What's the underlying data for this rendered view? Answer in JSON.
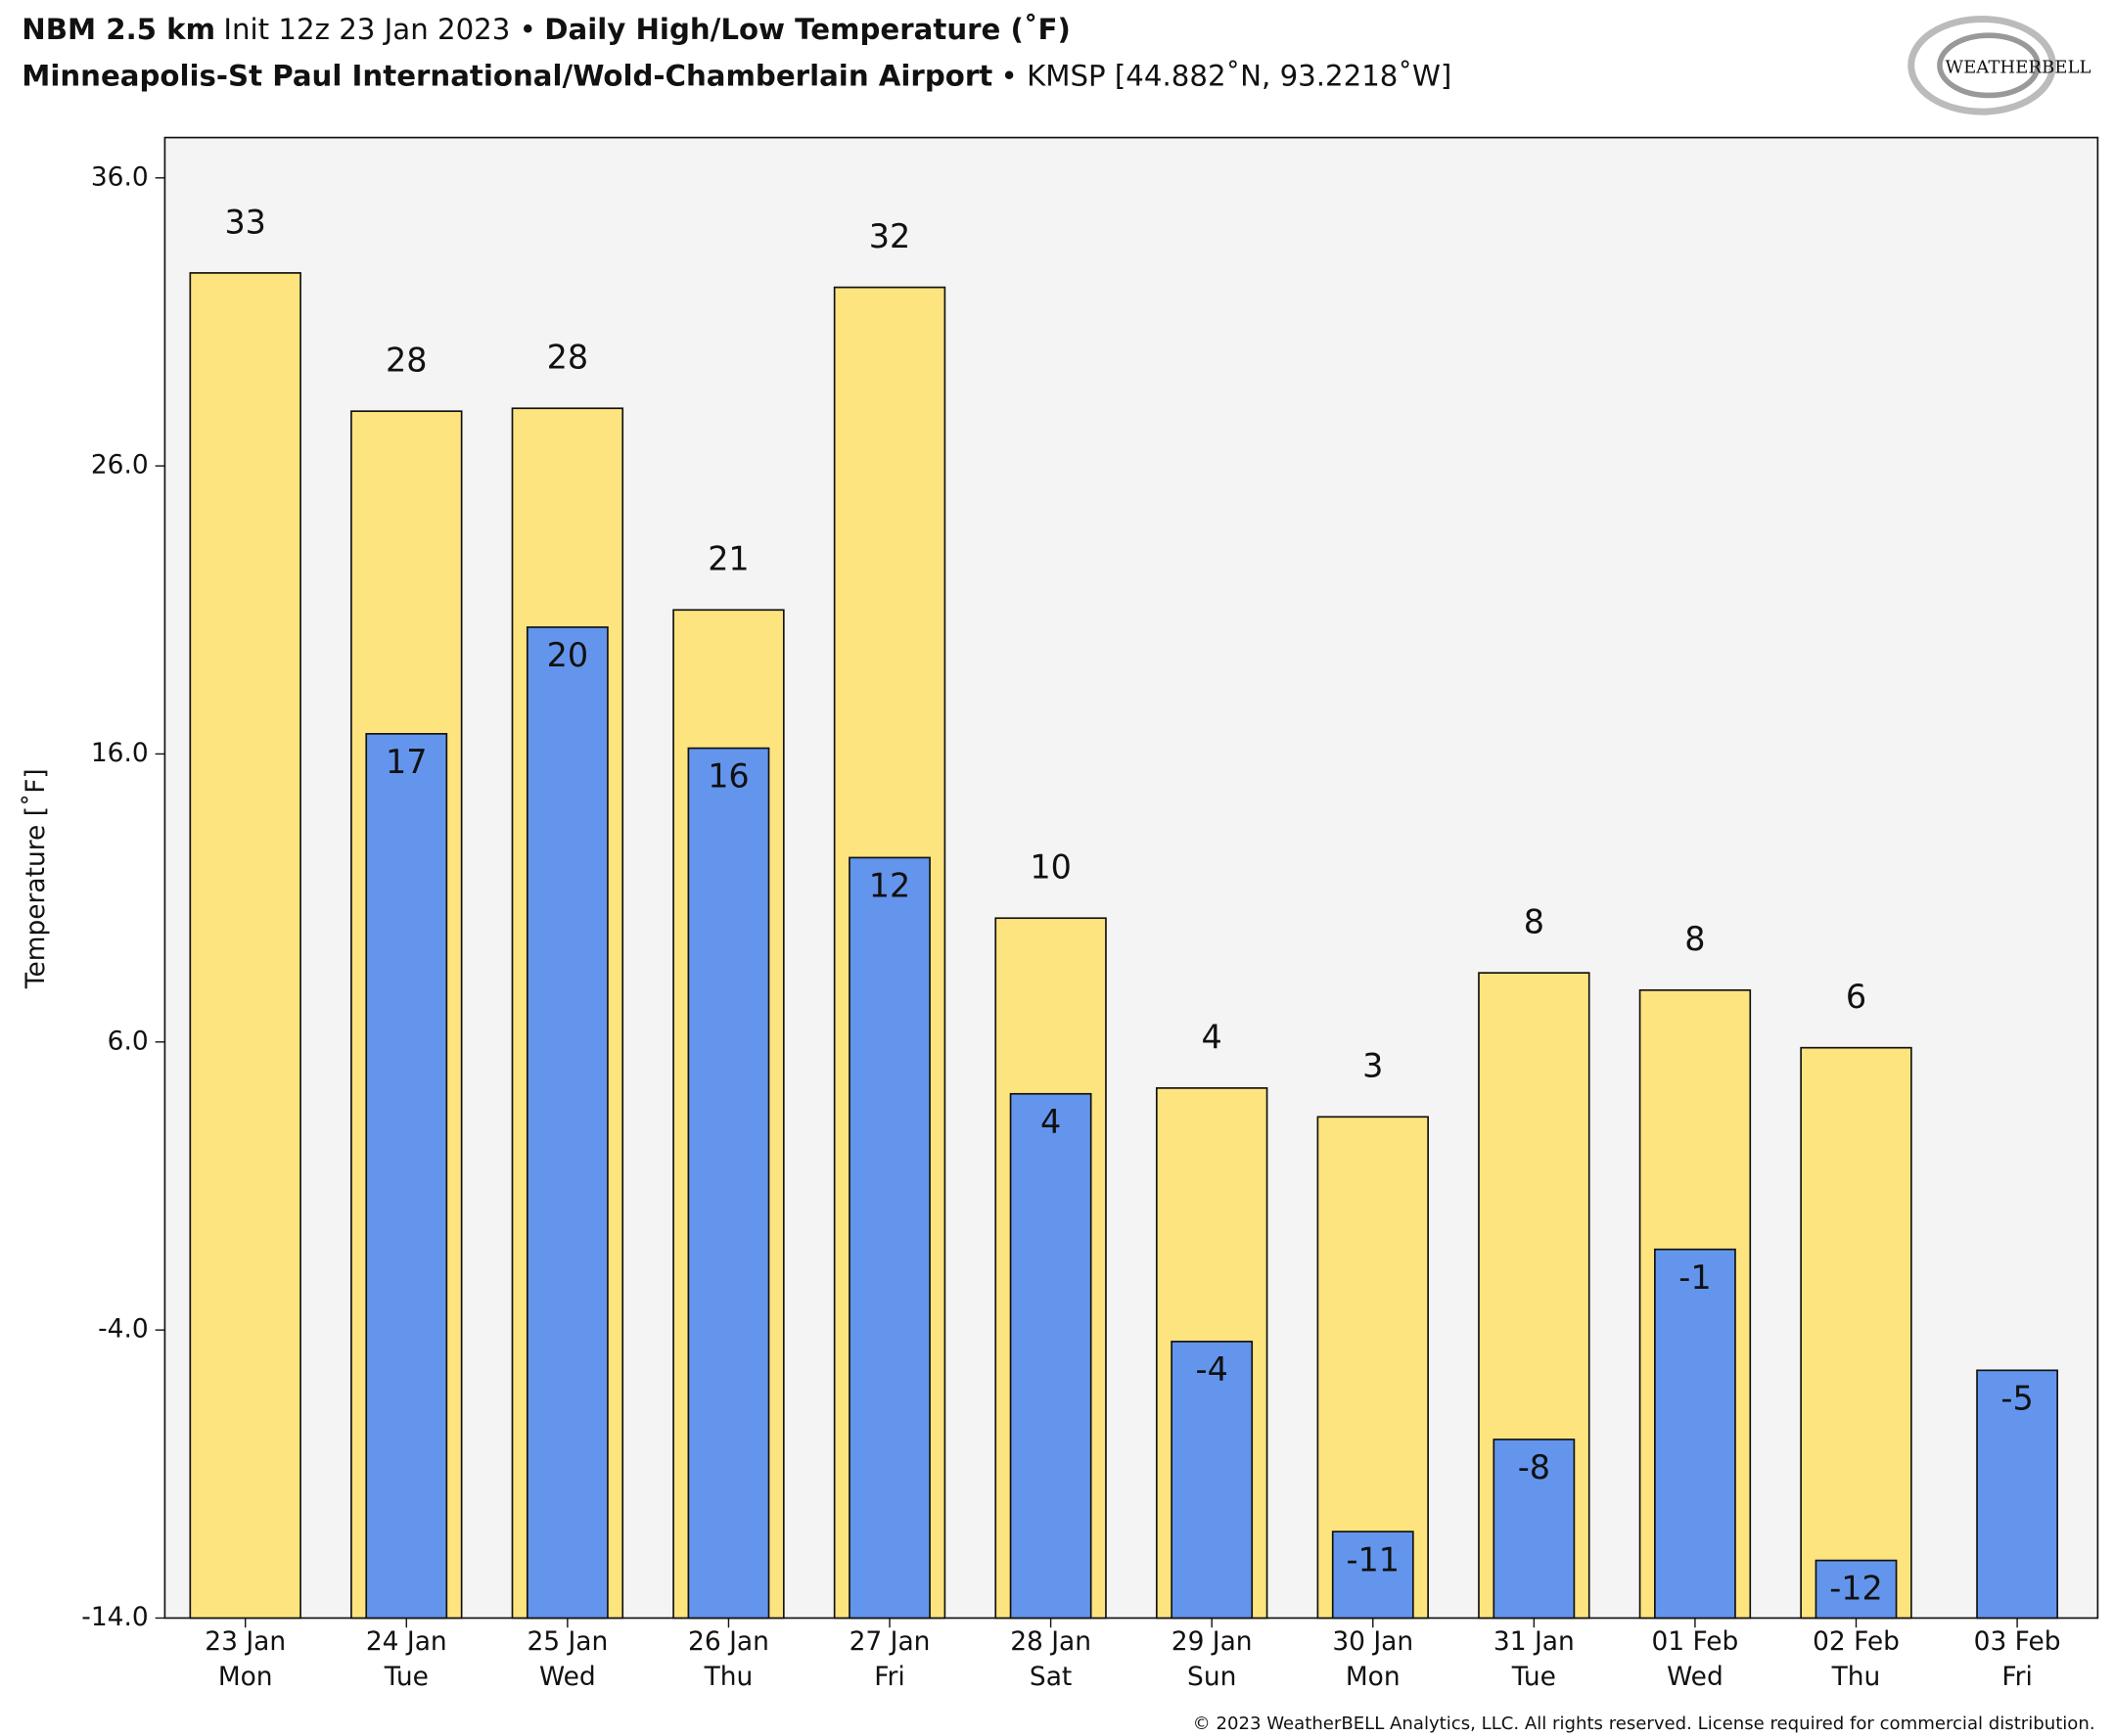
{
  "chart_data": {
    "type": "bar",
    "title_model": "NBM 2.5 km",
    "title_init": "Init 12z 23 Jan 2023 •",
    "title_product": "Daily High/Low Temperature (˚F)",
    "subtitle_station": "Minneapolis-St Paul International/Wold-Chamberlain Airport",
    "subtitle_id": "• KMSP [44.882˚N, 93.2218˚W]",
    "logo": "WEATHERBELL",
    "ylabel": "Temperature [˚F]",
    "footer": "© 2023 WeatherBELL Analytics, LLC. All rights reserved. License required for commercial distribution.",
    "categories": [
      "23 Jan",
      "24 Jan",
      "25 Jan",
      "26 Jan",
      "27 Jan",
      "28 Jan",
      "29 Jan",
      "30 Jan",
      "31 Jan",
      "01 Feb",
      "02 Feb",
      "03 Feb"
    ],
    "weekdays": [
      "Mon",
      "Tue",
      "Wed",
      "Thu",
      "Fri",
      "Sat",
      "Sun",
      "Mon",
      "Tue",
      "Wed",
      "Thu",
      "Fri"
    ],
    "series": [
      {
        "color": "#fde47f",
        "values": [
          32.7,
          27.9,
          28.0,
          21.0,
          32.2,
          10.3,
          4.4,
          3.4,
          8.4,
          7.8,
          5.8,
          null
        ],
        "value_labels": [
          "33",
          "28",
          "28",
          "21",
          "32",
          "10",
          "4",
          "3",
          "8",
          "8",
          "6",
          null
        ]
      },
      {
        "color": "#6495ed",
        "values": [
          null,
          16.7,
          20.4,
          16.2,
          12.4,
          4.2,
          -4.4,
          -11.0,
          -7.8,
          -1.2,
          -12.0,
          -5.4
        ],
        "value_labels": [
          null,
          "17",
          "20",
          "16",
          "12",
          "4",
          "-4",
          "-11",
          "-8",
          "-1",
          "-12",
          "-5"
        ]
      }
    ],
    "ylim": [
      -14,
      37.4
    ],
    "yticks": [
      {
        "value": 36,
        "label": "36.0"
      },
      {
        "value": 26,
        "label": "26.0"
      },
      {
        "value": 16,
        "label": "16.0"
      },
      {
        "value": 6,
        "label": "6.0"
      },
      {
        "value": -4,
        "label": "-4.0"
      },
      {
        "value": -14,
        "label": "-14.0"
      }
    ],
    "plot_background": "#f4f4f4"
  }
}
